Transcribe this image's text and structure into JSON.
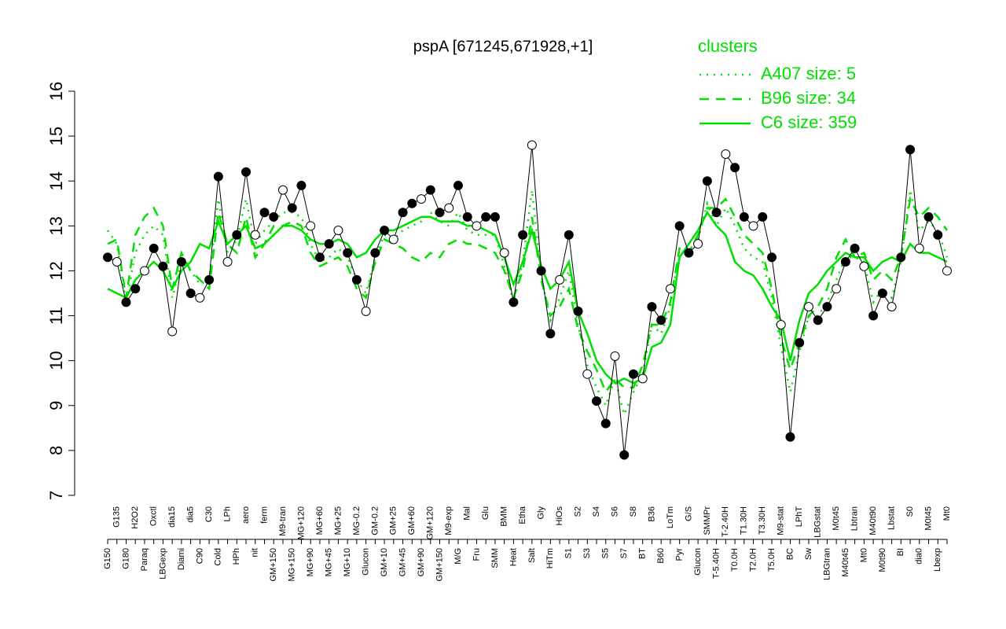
{
  "chart_data": {
    "type": "line",
    "title": "pspA [671245,671928,+1]",
    "categories": [
      "G150",
      "G135",
      "G180",
      "H2O2",
      "Paraq",
      "Oxctl",
      "LBGexp",
      "dia15",
      "Diami",
      "dia5",
      "C90",
      "C30",
      "Cold",
      "LPh",
      "HPh",
      "aero",
      "nit",
      "ferm",
      "GM+150",
      "M9-tran",
      "MG+150",
      "MG+120",
      "MG+90",
      "MG+60",
      "MG+45",
      "MG+25",
      "MG+10",
      "MG-0.2",
      "Glucon",
      "GM-0.2",
      "GM+10",
      "GM+25",
      "GM+45",
      "GM+60",
      "GM+90",
      "GM+120",
      "GM+150",
      "M9-exp",
      "M/G",
      "Mal",
      "Fru",
      "Glu",
      "SMM",
      "BMM",
      "Heat",
      "Etha",
      "Salt",
      "Gly",
      "HiTm",
      "HiOs",
      "S1",
      "S2",
      "S3",
      "S4",
      "S5",
      "S6",
      "S7",
      "S8",
      "BT",
      "B36",
      "B60",
      "LoTm",
      "Pyr",
      "G/S",
      "Glucon",
      "SMMPr",
      "T-5.40H",
      "T-2.40H",
      "T0.0H",
      "T1.30H",
      "T2.0H",
      "T3.30H",
      "T5.0H",
      "M9-stat",
      "BC",
      "LPhT",
      "Sw",
      "LBGstat",
      "LBGtran",
      "M0t45",
      "M40t45",
      "Lbtran",
      "Mt0",
      "M40t90",
      "M0t90",
      "Lbstat",
      "BI",
      "S0",
      "dia0",
      "M0t45",
      "Lbexp",
      "Mt0"
    ],
    "values": [
      12.3,
      12.2,
      11.3,
      11.6,
      12.0,
      12.5,
      12.1,
      10.65,
      12.2,
      11.5,
      11.4,
      11.8,
      14.1,
      12.2,
      12.8,
      14.2,
      12.8,
      13.3,
      13.2,
      13.8,
      13.4,
      13.9,
      13.0,
      12.3,
      12.6,
      12.9,
      12.4,
      11.8,
      11.1,
      12.4,
      12.9,
      12.7,
      13.3,
      13.5,
      13.6,
      13.8,
      13.3,
      13.4,
      13.9,
      13.2,
      13.0,
      13.2,
      13.2,
      12.4,
      11.3,
      12.8,
      14.8,
      12.0,
      10.6,
      11.8,
      12.8,
      11.1,
      9.7,
      9.1,
      8.6,
      10.1,
      7.9,
      9.7,
      9.6,
      11.2,
      10.9,
      11.6,
      13.0,
      12.4,
      12.6,
      14.0,
      13.3,
      14.6,
      14.3,
      13.2,
      13.0,
      13.2,
      12.3,
      10.8,
      8.3,
      10.4,
      11.2,
      10.9,
      11.2,
      11.6,
      12.2,
      12.5,
      12.1,
      11.0,
      11.5,
      11.2,
      12.3,
      14.7,
      12.5,
      13.2,
      12.8,
      12.0
    ],
    "color": "#000000",
    "legend_title": "clusters",
    "series": [
      {
        "name": "A407 size: 5",
        "color": "#00e000",
        "dash": "dotted",
        "values": [
          12.9,
          12.6,
          11.3,
          12.4,
          12.8,
          13.0,
          12.8,
          11.4,
          12.2,
          12.0,
          11.7,
          11.8,
          13.6,
          12.4,
          12.7,
          13.6,
          12.6,
          12.9,
          13.1,
          13.3,
          13.3,
          13.2,
          12.6,
          12.2,
          12.3,
          12.5,
          12.3,
          11.8,
          11.5,
          12.3,
          12.8,
          12.7,
          12.9,
          13.0,
          13.1,
          13.3,
          13.1,
          13.0,
          13.3,
          12.9,
          12.8,
          12.8,
          12.8,
          12.1,
          11.3,
          12.2,
          13.8,
          11.9,
          10.9,
          11.4,
          12.0,
          10.8,
          9.9,
          9.4,
          9.0,
          9.6,
          8.8,
          9.3,
          9.7,
          10.8,
          10.6,
          11.2,
          12.5,
          12.4,
          12.7,
          13.5,
          13.0,
          13.4,
          13.0,
          12.5,
          12.3,
          12.2,
          11.4,
          10.3,
          9.3,
          10.2,
          11.0,
          11.0,
          11.3,
          11.8,
          12.3,
          12.3,
          12.2,
          11.3,
          11.6,
          11.4,
          12.2,
          13.8,
          12.9,
          13.1,
          12.9,
          12.3
        ]
      },
      {
        "name": "B96 size: 34",
        "color": "#00e000",
        "dash": "dashed",
        "values": [
          12.6,
          12.7,
          11.4,
          12.8,
          13.2,
          13.4,
          13.0,
          11.6,
          12.4,
          12.0,
          11.8,
          11.6,
          13.3,
          12.6,
          12.4,
          13.2,
          12.3,
          12.6,
          13.0,
          13.0,
          13.1,
          13.0,
          12.4,
          12.1,
          12.2,
          12.3,
          12.1,
          11.6,
          11.4,
          12.2,
          12.7,
          12.6,
          12.5,
          12.3,
          12.2,
          12.4,
          12.3,
          12.6,
          12.7,
          12.6,
          12.6,
          12.5,
          12.4,
          12.0,
          11.4,
          12.0,
          13.2,
          11.8,
          11.0,
          11.2,
          11.6,
          10.7,
          10.2,
          9.8,
          9.3,
          9.6,
          9.4,
          9.4,
          9.9,
          10.8,
          10.8,
          11.3,
          12.5,
          12.4,
          12.8,
          13.4,
          13.4,
          13.6,
          13.2,
          12.8,
          12.6,
          12.4,
          11.6,
          10.5,
          9.8,
          10.4,
          11.0,
          11.2,
          11.6,
          12.3,
          12.7,
          12.3,
          12.4,
          11.8,
          12.0,
          11.8,
          12.3,
          13.6,
          13.2,
          13.4,
          13.2,
          12.9
        ]
      },
      {
        "name": "C6 size: 359",
        "color": "#00e000",
        "dash": "solid",
        "values": [
          11.6,
          11.5,
          11.4,
          11.8,
          12.0,
          12.2,
          12.0,
          11.6,
          12.0,
          12.2,
          12.6,
          12.5,
          13.1,
          12.6,
          12.8,
          13.0,
          12.5,
          12.6,
          12.8,
          13.0,
          13.0,
          12.9,
          12.7,
          12.6,
          12.6,
          12.7,
          12.6,
          12.3,
          12.4,
          12.7,
          12.9,
          12.9,
          13.0,
          13.1,
          13.2,
          13.2,
          13.1,
          13.1,
          13.1,
          13.0,
          13.0,
          12.9,
          12.8,
          12.3,
          11.7,
          12.2,
          12.9,
          12.1,
          11.6,
          11.8,
          12.2,
          11.1,
          10.6,
          10.0,
          9.7,
          9.5,
          9.6,
          9.5,
          9.6,
          10.3,
          10.4,
          10.8,
          12.3,
          12.6,
          12.9,
          13.3,
          13.0,
          12.8,
          12.2,
          12.0,
          11.9,
          11.6,
          11.2,
          10.9,
          10.0,
          10.9,
          11.5,
          11.7,
          12.0,
          12.2,
          12.4,
          12.3,
          12.3,
          12.0,
          12.2,
          12.3,
          12.2,
          12.6,
          12.4,
          12.4,
          12.3,
          12.2
        ]
      }
    ],
    "ylim": [
      7,
      16
    ],
    "yticks": [
      7,
      8,
      9,
      10,
      11,
      12,
      13,
      14,
      15,
      16
    ],
    "legend": "top-right"
  }
}
